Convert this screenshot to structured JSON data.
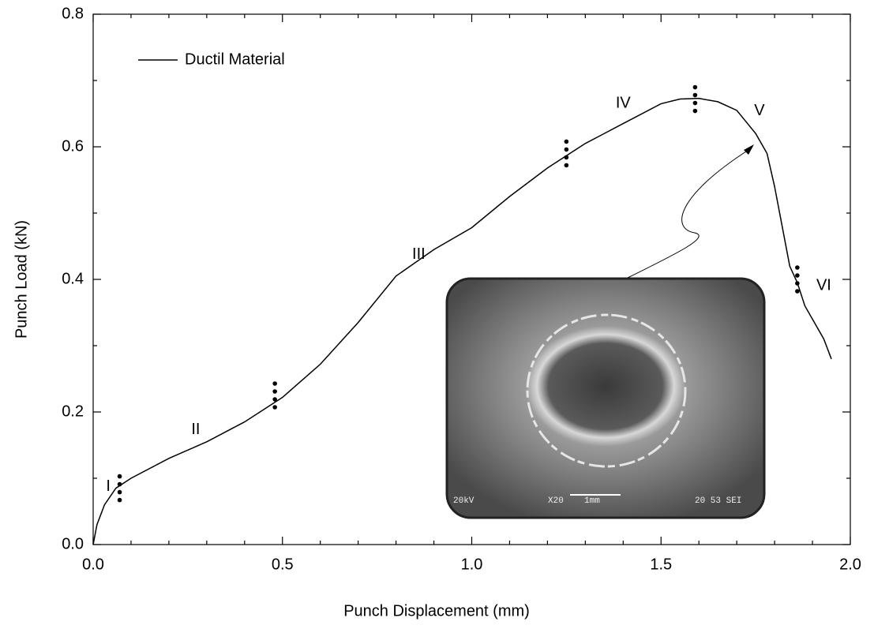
{
  "chart_data": {
    "type": "line",
    "xlabel": "Punch Displacement (mm)",
    "ylabel": "Punch Load (kN)",
    "xlim": [
      0,
      2.0
    ],
    "ylim": [
      0,
      0.8
    ],
    "xticks": [
      {
        "value": 0,
        "label": "0.0"
      },
      0.5,
      {
        "value": 1.0,
        "label": "1.0"
      },
      1.5,
      {
        "value": 2.0,
        "label": "2.0"
      }
    ],
    "yticks": [
      {
        "value": 0,
        "label": "0.0"
      },
      0.2,
      0.4,
      0.6,
      0.8
    ],
    "legend": "upper left",
    "series": [
      {
        "name": "Ductil Material",
        "color": "#000000",
        "x": [
          0,
          0.01,
          0.03,
          0.06,
          0.1,
          0.2,
          0.3,
          0.4,
          0.5,
          0.6,
          0.7,
          0.8,
          0.9,
          1.0,
          1.1,
          1.2,
          1.3,
          1.4,
          1.5,
          1.55,
          1.6,
          1.65,
          1.7,
          1.75,
          1.78,
          1.8,
          1.82,
          1.84,
          1.86,
          1.88,
          1.9,
          1.93,
          1.95
        ],
        "values": [
          0,
          0.03,
          0.06,
          0.085,
          0.1,
          0.13,
          0.155,
          0.185,
          0.222,
          0.272,
          0.335,
          0.405,
          0.445,
          0.478,
          0.525,
          0.568,
          0.605,
          0.635,
          0.665,
          0.672,
          0.673,
          0.668,
          0.655,
          0.62,
          0.59,
          0.54,
          0.48,
          0.42,
          0.395,
          0.36,
          0.34,
          0.31,
          0.28
        ]
      }
    ],
    "stage_markers": {
      "x": [
        0.07,
        0.48,
        1.25,
        1.59,
        1.86
      ],
      "y": [
        0.085,
        0.225,
        0.59,
        0.672,
        0.4
      ]
    },
    "annotations": [
      {
        "text": "I",
        "x": 0.04,
        "y": 0.087
      },
      {
        "text": "II",
        "x": 0.271,
        "y": 0.173
      },
      {
        "text": "III",
        "x": 0.86,
        "y": 0.437
      },
      {
        "text": "IV",
        "x": 1.4,
        "y": 0.665
      },
      {
        "text": "V",
        "x": 1.76,
        "y": 0.654
      },
      {
        "text": "VI",
        "x": 1.93,
        "y": 0.39
      }
    ],
    "inset_labels": [
      "20kV",
      "X20",
      "1mm",
      "20 53 SEI"
    ]
  }
}
